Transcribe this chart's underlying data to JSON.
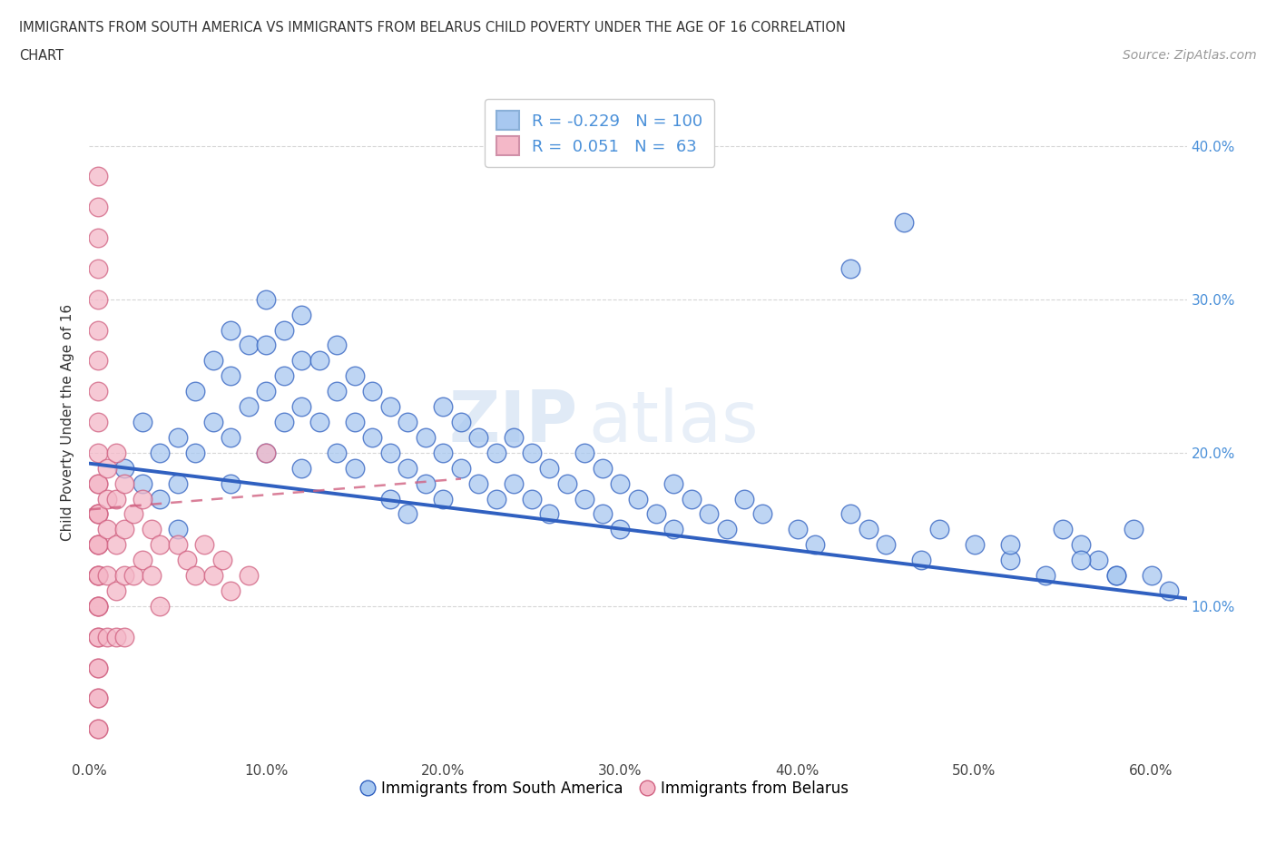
{
  "title_line1": "IMMIGRANTS FROM SOUTH AMERICA VS IMMIGRANTS FROM BELARUS CHILD POVERTY UNDER THE AGE OF 16 CORRELATION",
  "title_line2": "CHART",
  "source": "Source: ZipAtlas.com",
  "ylabel": "Child Poverty Under the Age of 16",
  "xlim": [
    0.0,
    0.62
  ],
  "ylim": [
    0.0,
    0.44
  ],
  "xticks": [
    0.0,
    0.1,
    0.2,
    0.3,
    0.4,
    0.5,
    0.6
  ],
  "xticklabels": [
    "0.0%",
    "10.0%",
    "20.0%",
    "30.0%",
    "40.0%",
    "50.0%",
    "60.0%"
  ],
  "yticks_left": [
    0.1,
    0.2,
    0.3,
    0.4
  ],
  "yticks_right": [
    0.1,
    0.2,
    0.3,
    0.4
  ],
  "yticklabels_right": [
    "10.0%",
    "20.0%",
    "30.0%",
    "40.0%"
  ],
  "color_blue": "#a8c8f0",
  "color_pink": "#f4b8c8",
  "line_blue": "#3060c0",
  "line_pink": "#d06080",
  "legend_R_blue": "-0.229",
  "legend_N_blue": "100",
  "legend_R_pink": "0.051",
  "legend_N_pink": "63",
  "watermark_zip": "ZIP",
  "watermark_atlas": "atlas",
  "blue_trend_x0": 0.0,
  "blue_trend_y0": 0.193,
  "blue_trend_x1": 0.62,
  "blue_trend_y1": 0.105,
  "pink_trend_x0": 0.0,
  "pink_trend_y0": 0.163,
  "pink_trend_x1": 0.21,
  "pink_trend_y1": 0.183,
  "blue_scatter_x": [
    0.02,
    0.03,
    0.03,
    0.04,
    0.04,
    0.05,
    0.05,
    0.05,
    0.06,
    0.06,
    0.07,
    0.07,
    0.08,
    0.08,
    0.08,
    0.08,
    0.09,
    0.09,
    0.1,
    0.1,
    0.1,
    0.1,
    0.11,
    0.11,
    0.11,
    0.12,
    0.12,
    0.12,
    0.12,
    0.13,
    0.13,
    0.14,
    0.14,
    0.14,
    0.15,
    0.15,
    0.15,
    0.16,
    0.16,
    0.17,
    0.17,
    0.17,
    0.18,
    0.18,
    0.18,
    0.19,
    0.19,
    0.2,
    0.2,
    0.2,
    0.21,
    0.21,
    0.22,
    0.22,
    0.23,
    0.23,
    0.24,
    0.24,
    0.25,
    0.25,
    0.26,
    0.26,
    0.27,
    0.28,
    0.28,
    0.29,
    0.29,
    0.3,
    0.3,
    0.31,
    0.32,
    0.33,
    0.33,
    0.34,
    0.35,
    0.36,
    0.37,
    0.38,
    0.4,
    0.41,
    0.43,
    0.44,
    0.45,
    0.47,
    0.48,
    0.5,
    0.52,
    0.54,
    0.55,
    0.56,
    0.57,
    0.58,
    0.43,
    0.46,
    0.52,
    0.56,
    0.58,
    0.59,
    0.6,
    0.61
  ],
  "blue_scatter_y": [
    0.19,
    0.22,
    0.18,
    0.2,
    0.17,
    0.21,
    0.18,
    0.15,
    0.24,
    0.2,
    0.26,
    0.22,
    0.28,
    0.25,
    0.21,
    0.18,
    0.27,
    0.23,
    0.3,
    0.27,
    0.24,
    0.2,
    0.28,
    0.25,
    0.22,
    0.29,
    0.26,
    0.23,
    0.19,
    0.26,
    0.22,
    0.27,
    0.24,
    0.2,
    0.25,
    0.22,
    0.19,
    0.24,
    0.21,
    0.23,
    0.2,
    0.17,
    0.22,
    0.19,
    0.16,
    0.21,
    0.18,
    0.23,
    0.2,
    0.17,
    0.22,
    0.19,
    0.21,
    0.18,
    0.2,
    0.17,
    0.21,
    0.18,
    0.2,
    0.17,
    0.19,
    0.16,
    0.18,
    0.2,
    0.17,
    0.19,
    0.16,
    0.18,
    0.15,
    0.17,
    0.16,
    0.18,
    0.15,
    0.17,
    0.16,
    0.15,
    0.17,
    0.16,
    0.15,
    0.14,
    0.16,
    0.15,
    0.14,
    0.13,
    0.15,
    0.14,
    0.13,
    0.12,
    0.15,
    0.14,
    0.13,
    0.12,
    0.32,
    0.35,
    0.14,
    0.13,
    0.12,
    0.15,
    0.12,
    0.11
  ],
  "pink_scatter_x": [
    0.005,
    0.005,
    0.005,
    0.005,
    0.005,
    0.005,
    0.005,
    0.005,
    0.005,
    0.005,
    0.005,
    0.005,
    0.005,
    0.005,
    0.005,
    0.005,
    0.005,
    0.005,
    0.005,
    0.005,
    0.005,
    0.005,
    0.005,
    0.005,
    0.005,
    0.005,
    0.005,
    0.005,
    0.005,
    0.005,
    0.005,
    0.005,
    0.01,
    0.01,
    0.01,
    0.01,
    0.01,
    0.015,
    0.015,
    0.015,
    0.015,
    0.015,
    0.02,
    0.02,
    0.02,
    0.02,
    0.025,
    0.025,
    0.03,
    0.03,
    0.035,
    0.035,
    0.04,
    0.04,
    0.05,
    0.055,
    0.06,
    0.065,
    0.07,
    0.075,
    0.08,
    0.09,
    0.1
  ],
  "pink_scatter_y": [
    0.38,
    0.36,
    0.34,
    0.32,
    0.3,
    0.28,
    0.26,
    0.24,
    0.22,
    0.2,
    0.18,
    0.16,
    0.14,
    0.12,
    0.1,
    0.08,
    0.06,
    0.04,
    0.02,
    0.16,
    0.14,
    0.12,
    0.1,
    0.08,
    0.06,
    0.04,
    0.02,
    0.18,
    0.16,
    0.14,
    0.12,
    0.1,
    0.19,
    0.17,
    0.15,
    0.12,
    0.08,
    0.2,
    0.17,
    0.14,
    0.11,
    0.08,
    0.18,
    0.15,
    0.12,
    0.08,
    0.16,
    0.12,
    0.17,
    0.13,
    0.15,
    0.12,
    0.14,
    0.1,
    0.14,
    0.13,
    0.12,
    0.14,
    0.12,
    0.13,
    0.11,
    0.12,
    0.2
  ]
}
